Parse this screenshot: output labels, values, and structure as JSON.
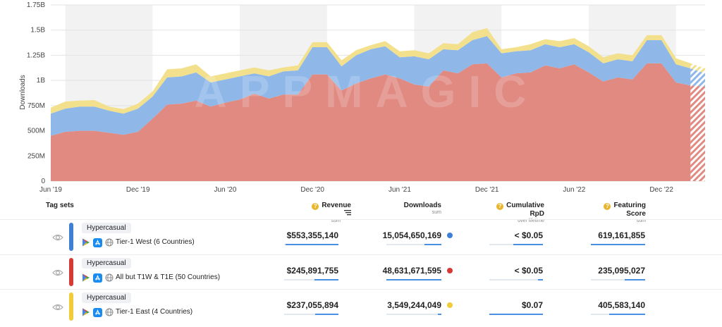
{
  "chart_data": {
    "type": "area",
    "stacked": true,
    "ylabel": "Downloads",
    "yticks": [
      "0",
      "250M",
      "500M",
      "750M",
      "1B",
      "1.25B",
      "1.5B",
      "1.75B"
    ],
    "ylim": [
      0,
      1750
    ],
    "xticks": [
      "Jun '19",
      "Dec '19",
      "Jun '20",
      "Dec '20",
      "Jun '21",
      "Dec '21",
      "Jun '22",
      "Dec '22"
    ],
    "x": [
      "2019-06",
      "2019-07",
      "2019-08",
      "2019-09",
      "2019-10",
      "2019-11",
      "2019-12",
      "2020-01",
      "2020-02",
      "2020-03",
      "2020-04",
      "2020-05",
      "2020-06",
      "2020-07",
      "2020-08",
      "2020-09",
      "2020-10",
      "2020-11",
      "2020-12",
      "2021-01",
      "2021-02",
      "2021-03",
      "2021-04",
      "2021-05",
      "2021-06",
      "2021-07",
      "2021-08",
      "2021-09",
      "2021-10",
      "2021-11",
      "2021-12",
      "2022-01",
      "2022-02",
      "2022-03",
      "2022-04",
      "2022-05",
      "2022-06",
      "2022-07",
      "2022-08",
      "2022-09",
      "2022-10",
      "2022-11",
      "2022-12",
      "2023-01",
      "2023-02",
      "2023-03"
    ],
    "partial_from": "2023-02",
    "series": [
      {
        "color": "#e08a82",
        "values": [
          450,
          490,
          500,
          500,
          480,
          460,
          490,
          620,
          760,
          770,
          800,
          740,
          780,
          810,
          870,
          820,
          860,
          860,
          1060,
          1060,
          900,
          970,
          1020,
          1060,
          1020,
          960,
          940,
          1100,
          1070,
          1160,
          1170,
          1030,
          1070,
          1080,
          1150,
          1120,
          1160,
          1080,
          990,
          1030,
          1010,
          1170,
          1170,
          980,
          950,
          940
        ]
      },
      {
        "color": "#8fb8e8",
        "values": [
          220,
          230,
          240,
          240,
          220,
          210,
          230,
          220,
          270,
          270,
          280,
          240,
          230,
          230,
          200,
          220,
          230,
          240,
          270,
          270,
          240,
          280,
          290,
          280,
          210,
          280,
          270,
          210,
          230,
          240,
          270,
          240,
          220,
          220,
          210,
          210,
          200,
          200,
          180,
          180,
          180,
          230,
          230,
          180,
          170,
          130
        ]
      },
      {
        "color": "#f2e08c",
        "values": [
          60,
          70,
          60,
          65,
          40,
          45,
          50,
          50,
          80,
          80,
          80,
          60,
          60,
          60,
          60,
          60,
          40,
          50,
          50,
          50,
          60,
          50,
          40,
          50,
          60,
          60,
          60,
          60,
          60,
          80,
          80,
          40,
          40,
          60,
          50,
          60,
          60,
          60,
          60,
          60,
          60,
          50,
          50,
          60,
          50,
          50
        ]
      }
    ]
  },
  "watermark": "APPMAGIC",
  "table": {
    "tagsets_header": "Tag sets",
    "columns": [
      {
        "label": "Revenue",
        "sub": "sum"
      },
      {
        "label": "Downloads",
        "sub": "sum"
      },
      {
        "label": "Cumulative RpD",
        "sub": "over lifetime"
      },
      {
        "label": "Featuring Score",
        "sub": "sum"
      }
    ],
    "rows": [
      {
        "tag": "Hypercasual",
        "countries": "Tier-1 West (6 Countries)",
        "color": "#3f7fd4",
        "revenue": "$553,355,140",
        "downloads": "15,054,650,169",
        "dot_color": "#3f7fd4",
        "rpd": "< $0.05",
        "featuring": "619,161,855",
        "bar_fractions": [
          0.98,
          0.31,
          0.55,
          1.0
        ]
      },
      {
        "tag": "Hypercasual",
        "countries": "All but T1W & T1E (50 Countries)",
        "color": "#d63a34",
        "revenue": "$245,891,755",
        "downloads": "48,631,671,595",
        "dot_color": "#d63a34",
        "rpd": "< $0.05",
        "featuring": "235,095,027",
        "bar_fractions": [
          0.44,
          1.0,
          0.09,
          0.38
        ]
      },
      {
        "tag": "Hypercasual",
        "countries": "Tier-1 East (4 Countries)",
        "color": "#f0cc38",
        "revenue": "$237,055,894",
        "downloads": "3,549,244,049",
        "dot_color": "#f0cc38",
        "rpd": "$0.07",
        "featuring": "405,583,140",
        "bar_fractions": [
          0.43,
          0.07,
          1.0,
          0.66
        ]
      }
    ]
  }
}
